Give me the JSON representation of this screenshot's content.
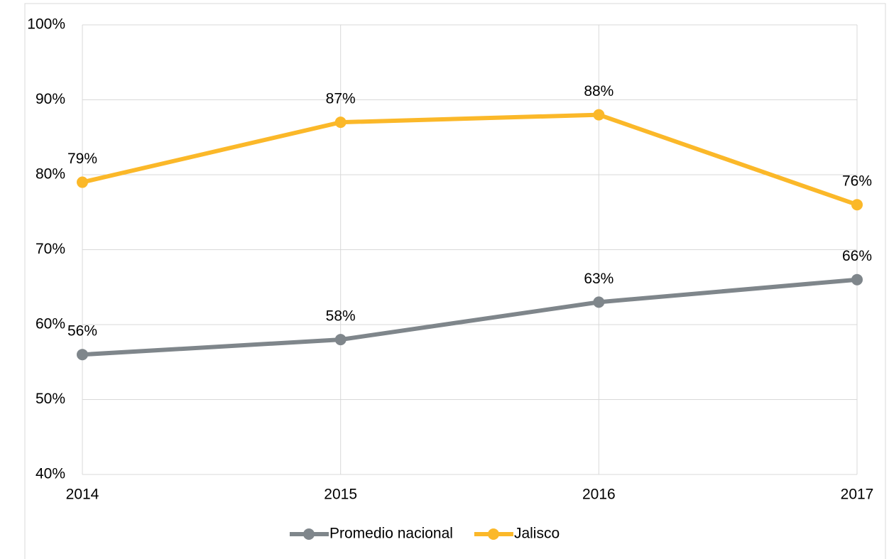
{
  "chart_data": {
    "type": "line",
    "categories": [
      "2014",
      "2015",
      "2016",
      "2017"
    ],
    "series": [
      {
        "name": "Promedio nacional",
        "color": "#7f868b",
        "values": [
          56,
          58,
          63,
          66
        ],
        "value_labels": [
          "56%",
          "58%",
          "63%",
          "66%"
        ]
      },
      {
        "name": "Jalisco",
        "color": "#fbb829",
        "values": [
          79,
          87,
          88,
          76
        ],
        "value_labels": [
          "79%",
          "87%",
          "88%",
          "76%"
        ]
      }
    ],
    "ylim": [
      40,
      100
    ],
    "yticks": [
      {
        "value": 40,
        "label": "40%"
      },
      {
        "value": 50,
        "label": "50%"
      },
      {
        "value": 60,
        "label": "60%"
      },
      {
        "value": 70,
        "label": "70%"
      },
      {
        "value": 80,
        "label": "80%"
      },
      {
        "value": 90,
        "label": "90%"
      },
      {
        "value": 100,
        "label": "100%"
      }
    ],
    "grid": true,
    "legend": "bottom"
  }
}
